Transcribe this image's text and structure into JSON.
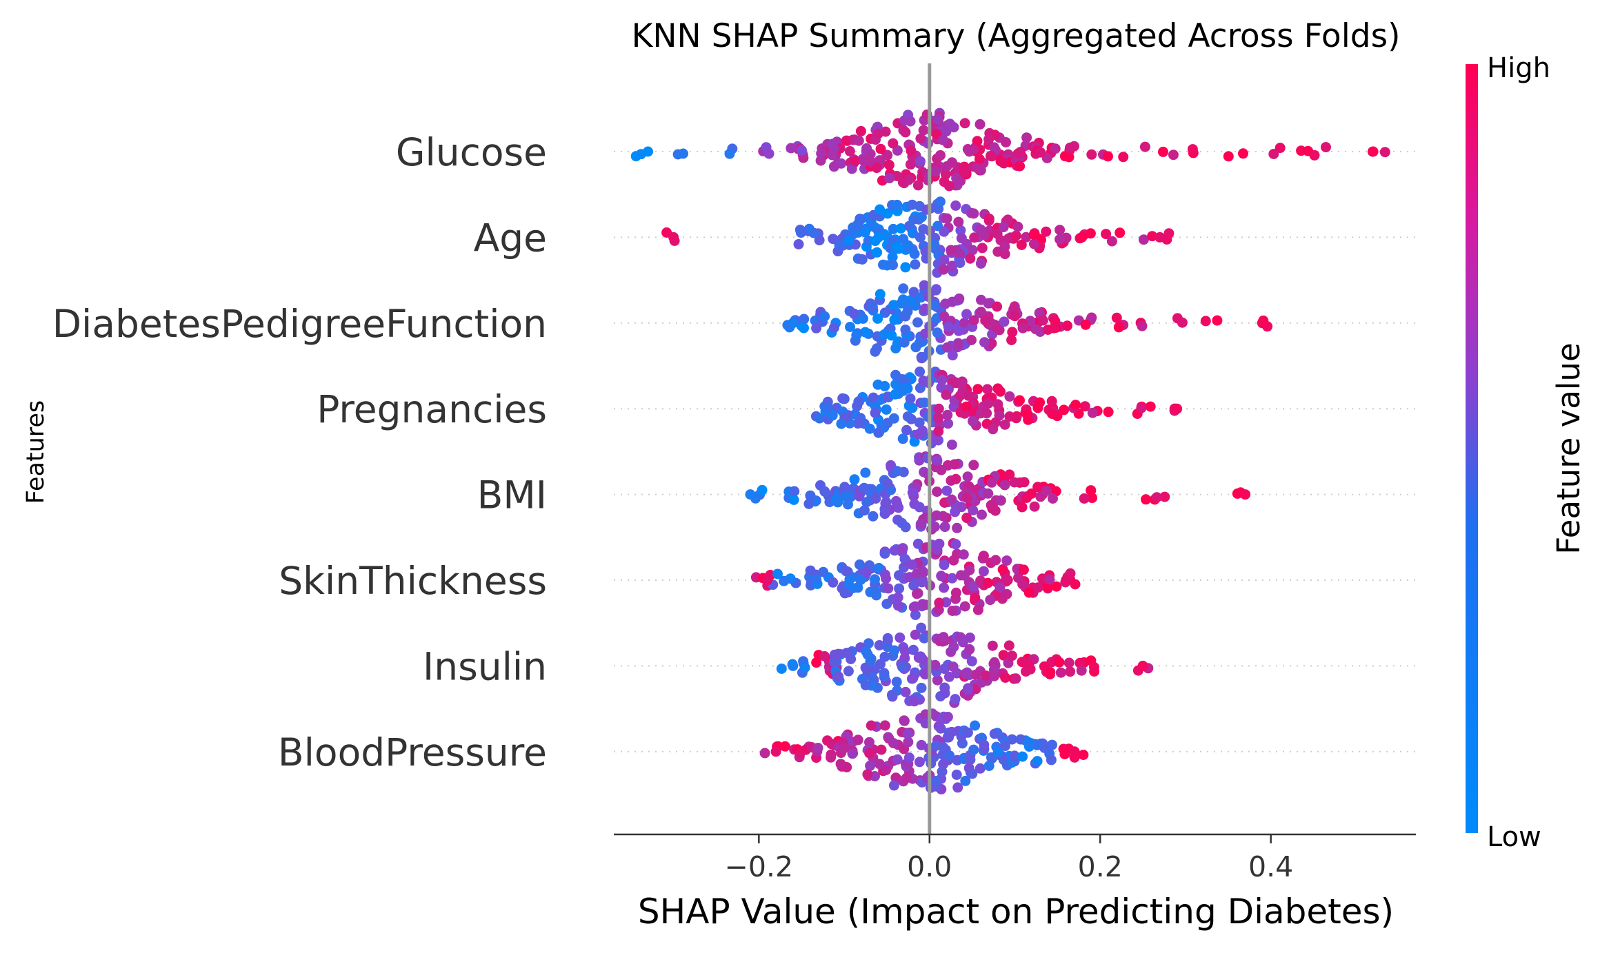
{
  "chart_data": {
    "type": "scatter",
    "subtype": "beeswarm",
    "title": "KNN SHAP Summary (Aggregated Across Folds)",
    "xlabel": "SHAP Value (Impact on Predicting Diabetes)",
    "ylabel": "Features",
    "xlim": [
      -0.37,
      0.57
    ],
    "x_ticks": [
      -0.2,
      0.0,
      0.2,
      0.4
    ],
    "x_tick_labels": [
      "−0.2",
      "0.0",
      "0.2",
      "0.4"
    ],
    "grid": false,
    "zero_line": true,
    "colorbar": {
      "title": "Feature value",
      "high_label": "High",
      "low_label": "Low",
      "high_color": "#ff0052",
      "low_color": "#008bfb"
    },
    "features": [
      {
        "name": "Glucose",
        "min": -0.33,
        "max": 0.52,
        "points": [
          [
            -0.33,
            0.0
          ],
          [
            -0.29,
            0.1
          ],
          [
            -0.24,
            0.3
          ],
          [
            -0.2,
            0.5
          ],
          [
            -0.15,
            0.6
          ],
          [
            -0.12,
            0.7
          ],
          [
            -0.1,
            0.75
          ],
          [
            -0.08,
            0.75
          ],
          [
            -0.05,
            0.75
          ],
          [
            -0.02,
            0.7
          ],
          [
            0.0,
            0.7
          ],
          [
            0.02,
            0.75
          ],
          [
            0.05,
            0.8
          ],
          [
            0.08,
            0.82
          ],
          [
            0.1,
            0.85
          ],
          [
            0.13,
            0.87
          ],
          [
            0.16,
            0.9
          ],
          [
            0.2,
            0.93
          ],
          [
            0.24,
            0.94
          ],
          [
            0.28,
            0.95
          ],
          [
            0.32,
            0.96
          ],
          [
            0.36,
            0.97
          ],
          [
            0.4,
            0.97
          ],
          [
            0.43,
            0.98
          ],
          [
            0.46,
            0.98
          ],
          [
            0.52,
            0.99
          ]
        ]
      },
      {
        "name": "Age",
        "min": -0.3,
        "max": 0.27,
        "points": [
          [
            -0.3,
            0.9
          ],
          [
            -0.14,
            0.3
          ],
          [
            -0.1,
            0.2
          ],
          [
            -0.07,
            0.15
          ],
          [
            -0.05,
            0.1
          ],
          [
            -0.03,
            0.15
          ],
          [
            0.0,
            0.3
          ],
          [
            0.03,
            0.55
          ],
          [
            0.06,
            0.7
          ],
          [
            0.09,
            0.8
          ],
          [
            0.12,
            0.85
          ],
          [
            0.15,
            0.87
          ],
          [
            0.18,
            0.9
          ],
          [
            0.21,
            0.9
          ],
          [
            0.25,
            0.85
          ],
          [
            0.27,
            0.9
          ]
        ]
      },
      {
        "name": "DiabetesPedigreeFunction",
        "min": -0.16,
        "max": 0.39,
        "points": [
          [
            -0.16,
            0.1
          ],
          [
            -0.12,
            0.2
          ],
          [
            -0.08,
            0.2
          ],
          [
            -0.05,
            0.15
          ],
          [
            -0.02,
            0.2
          ],
          [
            0.0,
            0.35
          ],
          [
            0.03,
            0.55
          ],
          [
            0.06,
            0.65
          ],
          [
            0.09,
            0.72
          ],
          [
            0.12,
            0.8
          ],
          [
            0.15,
            0.85
          ],
          [
            0.18,
            0.87
          ],
          [
            0.22,
            0.9
          ],
          [
            0.25,
            0.92
          ],
          [
            0.3,
            0.95
          ],
          [
            0.33,
            0.95
          ],
          [
            0.39,
            0.97
          ]
        ]
      },
      {
        "name": "Pregnancies",
        "min": -0.12,
        "max": 0.29,
        "points": [
          [
            -0.12,
            0.2
          ],
          [
            -0.09,
            0.25
          ],
          [
            -0.06,
            0.2
          ],
          [
            -0.03,
            0.2
          ],
          [
            0.0,
            0.35
          ],
          [
            0.02,
            0.7
          ],
          [
            0.05,
            0.8
          ],
          [
            0.08,
            0.85
          ],
          [
            0.11,
            0.9
          ],
          [
            0.14,
            0.9
          ],
          [
            0.17,
            0.92
          ],
          [
            0.2,
            0.9
          ],
          [
            0.24,
            0.92
          ],
          [
            0.26,
            0.95
          ],
          [
            0.29,
            0.95
          ]
        ]
      },
      {
        "name": "BMI",
        "min": -0.21,
        "max": 0.37,
        "points": [
          [
            -0.21,
            0.1
          ],
          [
            -0.17,
            0.15
          ],
          [
            -0.13,
            0.2
          ],
          [
            -0.1,
            0.25
          ],
          [
            -0.07,
            0.3
          ],
          [
            -0.04,
            0.4
          ],
          [
            -0.01,
            0.55
          ],
          [
            0.02,
            0.65
          ],
          [
            0.05,
            0.7
          ],
          [
            0.08,
            0.8
          ],
          [
            0.11,
            0.85
          ],
          [
            0.14,
            0.88
          ],
          [
            0.18,
            0.92
          ],
          [
            0.26,
            0.95
          ],
          [
            0.28,
            0.95
          ],
          [
            0.37,
            0.97
          ]
        ]
      },
      {
        "name": "SkinThickness",
        "min": -0.19,
        "max": 0.16,
        "points": [
          [
            -0.19,
            0.9
          ],
          [
            -0.17,
            0.2
          ],
          [
            -0.13,
            0.2
          ],
          [
            -0.1,
            0.25
          ],
          [
            -0.07,
            0.3
          ],
          [
            -0.04,
            0.4
          ],
          [
            -0.01,
            0.55
          ],
          [
            0.02,
            0.65
          ],
          [
            0.05,
            0.75
          ],
          [
            0.08,
            0.8
          ],
          [
            0.11,
            0.85
          ],
          [
            0.14,
            0.88
          ],
          [
            0.16,
            0.9
          ]
        ]
      },
      {
        "name": "Insulin",
        "min": -0.16,
        "max": 0.25,
        "points": [
          [
            -0.16,
            0.1
          ],
          [
            -0.12,
            0.85
          ],
          [
            -0.1,
            0.25
          ],
          [
            -0.07,
            0.3
          ],
          [
            -0.04,
            0.35
          ],
          [
            -0.01,
            0.45
          ],
          [
            0.02,
            0.55
          ],
          [
            0.05,
            0.65
          ],
          [
            0.08,
            0.75
          ],
          [
            0.11,
            0.82
          ],
          [
            0.14,
            0.87
          ],
          [
            0.17,
            0.9
          ],
          [
            0.2,
            0.92
          ],
          [
            0.25,
            0.95
          ]
        ]
      },
      {
        "name": "BloodPressure",
        "min": -0.18,
        "max": 0.17,
        "points": [
          [
            -0.18,
            0.9
          ],
          [
            -0.15,
            0.85
          ],
          [
            -0.12,
            0.8
          ],
          [
            -0.09,
            0.75
          ],
          [
            -0.06,
            0.7
          ],
          [
            -0.03,
            0.6
          ],
          [
            0.0,
            0.5
          ],
          [
            0.02,
            0.4
          ],
          [
            0.05,
            0.3
          ],
          [
            0.08,
            0.25
          ],
          [
            0.11,
            0.2
          ],
          [
            0.13,
            0.15
          ],
          [
            0.17,
            0.95
          ]
        ]
      }
    ]
  }
}
